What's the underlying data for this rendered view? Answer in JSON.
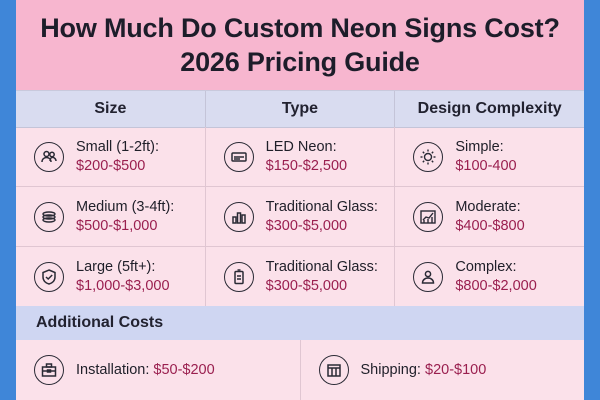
{
  "title": {
    "line1": "How Much Do Custom Neon Signs Cost?",
    "line2": "2026 Pricing Guide"
  },
  "columns": [
    "Size",
    "Type",
    "Design Complexity"
  ],
  "rows": [
    [
      {
        "icon": "people-icon",
        "label": "Small (1-2ft):",
        "value": "$200-$500"
      },
      {
        "icon": "led-panel-icon",
        "label": "LED Neon:",
        "value": "$150-$2,500"
      },
      {
        "icon": "sun-icon",
        "label": "Simple:",
        "value": "$100-400"
      }
    ],
    [
      {
        "icon": "coil-icon",
        "label": "Medium (3-4ft):",
        "value": "$500-$1,000"
      },
      {
        "icon": "bar-chart-icon",
        "label": "Traditional Glass:",
        "value": "$300-$5,000"
      },
      {
        "icon": "growth-chart-icon",
        "label": "Moderate:",
        "value": "$400-$800"
      }
    ],
    [
      {
        "icon": "shield-check-icon",
        "label": "Large (5ft+):",
        "value": "$1,000-$3,000"
      },
      {
        "icon": "battery-icon",
        "label": "Traditional Glass:",
        "value": "$300-$5,000"
      },
      {
        "icon": "person-icon",
        "label": "Complex:",
        "value": "$800-$2,000"
      }
    ]
  ],
  "additional": {
    "heading": "Additional Costs",
    "items": [
      {
        "icon": "toolbox-icon",
        "label": "Installation:",
        "value": "$50-$200"
      },
      {
        "icon": "package-icon",
        "label": "Shipping:",
        "value": "$20-$100"
      }
    ]
  }
}
